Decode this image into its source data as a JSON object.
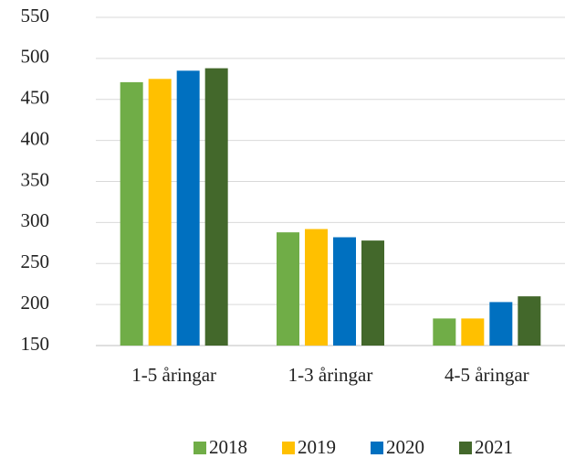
{
  "chart_data": {
    "type": "bar",
    "categories": [
      "1-5 åringar",
      "1-3 åringar",
      "4-5 åringar"
    ],
    "series": [
      {
        "name": "2018",
        "color": "#70ad47",
        "values": [
          471,
          288,
          183
        ]
      },
      {
        "name": "2019",
        "color": "#ffc000",
        "values": [
          475,
          292,
          183
        ]
      },
      {
        "name": "2020",
        "color": "#0070c0",
        "values": [
          485,
          282,
          203
        ]
      },
      {
        "name": "2021",
        "color": "#43682b",
        "values": [
          488,
          278,
          210
        ]
      }
    ],
    "ylim": [
      150,
      550
    ],
    "yticks": [
      150,
      200,
      250,
      300,
      350,
      400,
      450,
      500,
      550
    ],
    "grid": true,
    "legend": "bottom"
  }
}
